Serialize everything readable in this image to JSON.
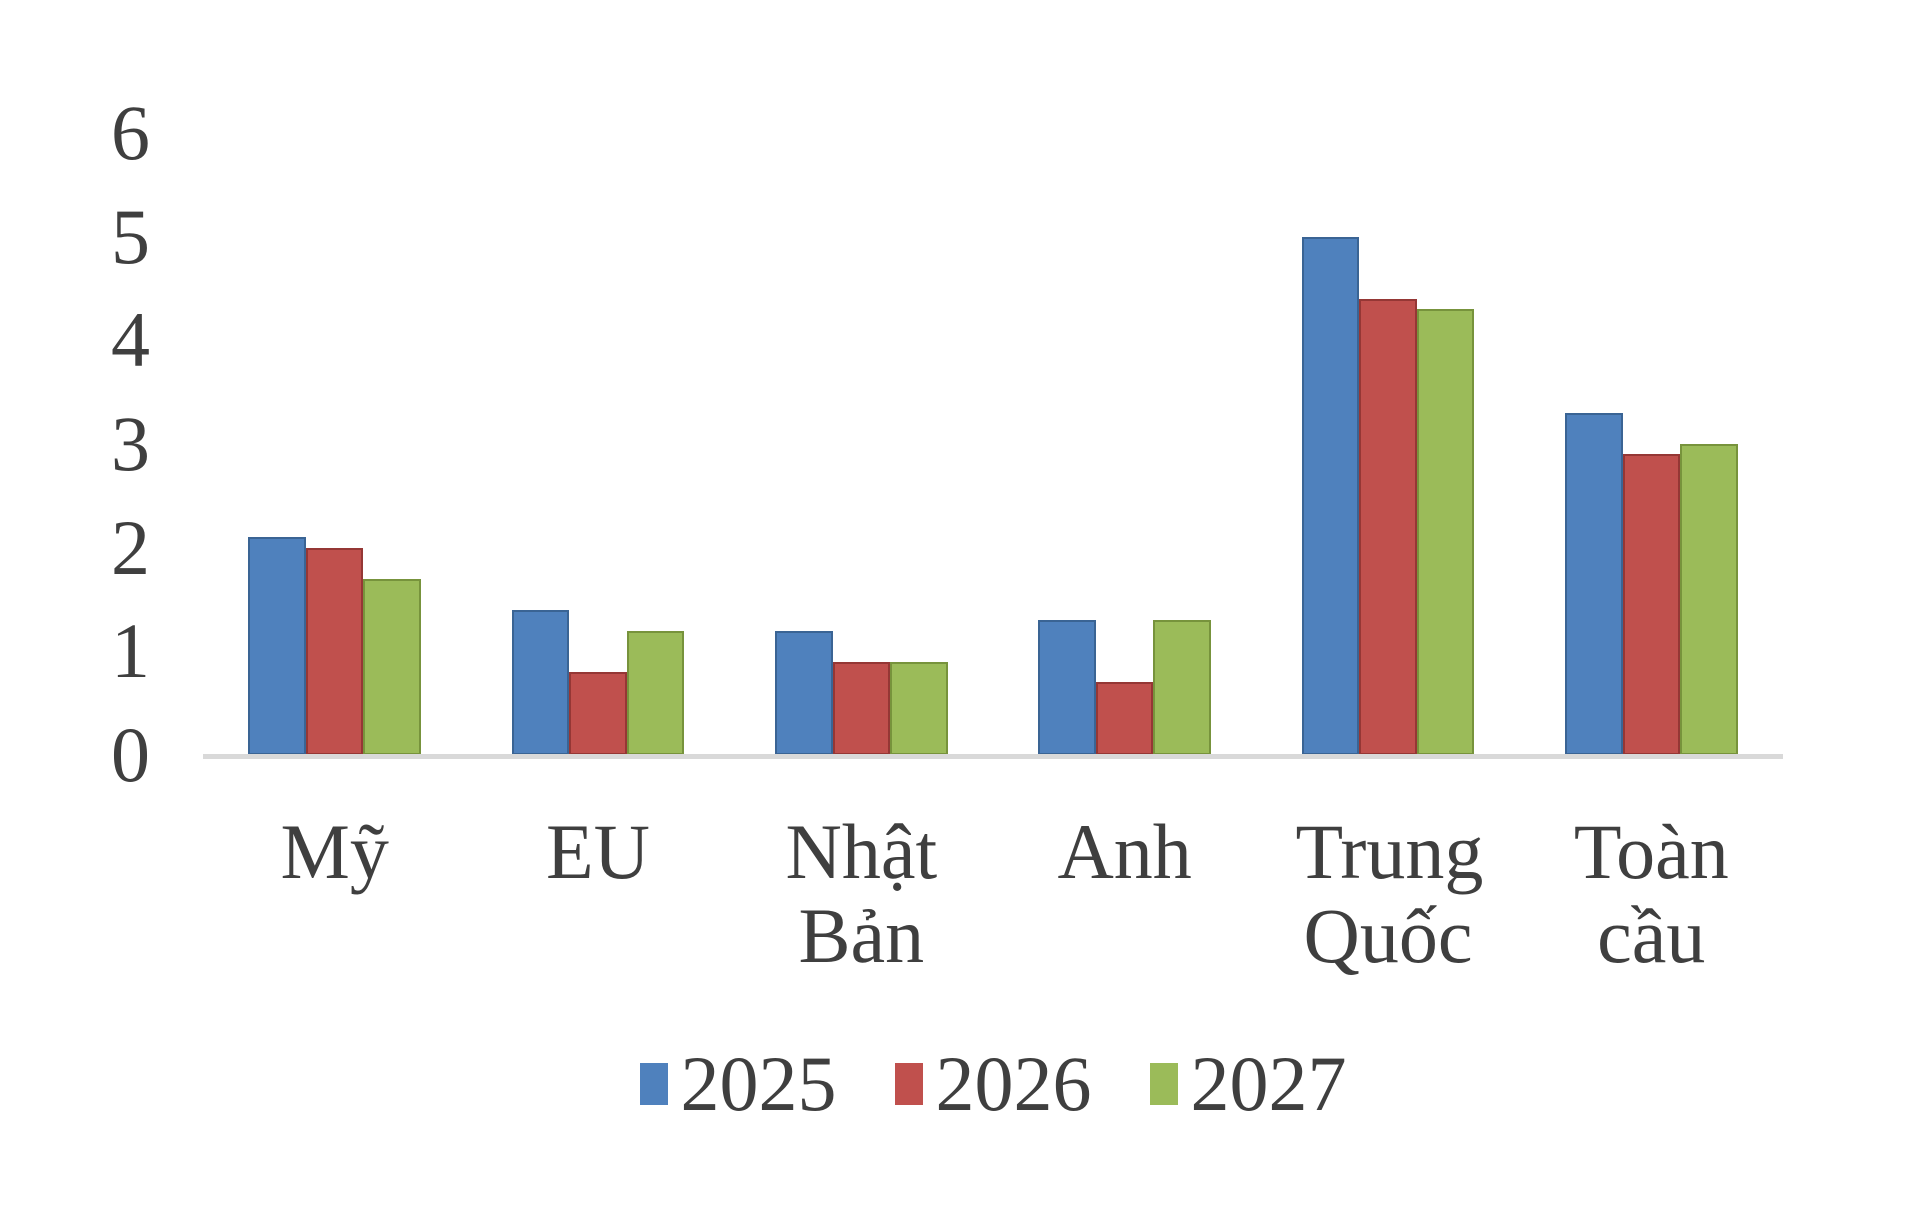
{
  "chart_data": {
    "type": "bar",
    "title": "",
    "xlabel": "",
    "ylabel": "",
    "categories": [
      "Mỹ",
      "EU",
      "Nhật Bản",
      "Anh",
      "Trung Quốc",
      "Toàn cầu"
    ],
    "series": [
      {
        "name": "2025",
        "color": "#4F81BD",
        "border_color": "#3A6494",
        "values": [
          2.1,
          1.4,
          1.2,
          1.3,
          5.0,
          3.3
        ]
      },
      {
        "name": "2026",
        "color": "#C0504D",
        "border_color": "#953735",
        "values": [
          2.0,
          0.8,
          0.9,
          0.7,
          4.4,
          2.9
        ]
      },
      {
        "name": "2027",
        "color": "#9BBB59",
        "border_color": "#77933C",
        "values": [
          1.7,
          1.2,
          0.9,
          1.3,
          4.3,
          3.0
        ]
      }
    ],
    "y_ticks": [
      "0",
      "1",
      "2",
      "3",
      "4",
      "5",
      "6"
    ],
    "ylim": [
      0,
      6
    ],
    "grid": false,
    "legend_position": "bottom",
    "colors": {
      "axis_line": "#D9D9D9",
      "text": "#3F3F3F",
      "background": "#FFFFFF"
    }
  }
}
